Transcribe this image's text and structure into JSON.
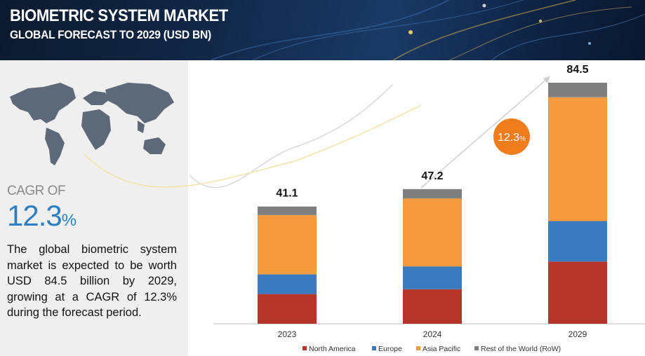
{
  "header": {
    "title": "BIOMETRIC SYSTEM MARKET",
    "subtitle": "GLOBAL FORECAST TO 2029 (USD BN)"
  },
  "cagr": {
    "label": "CAGR OF",
    "value": "12.3",
    "unit": "%",
    "bubble_value": "12.3",
    "bubble_unit": "%"
  },
  "description": "The global biometric system market is expected to be worth USD 84.5 billion by 2029, growing at a CAGR of 12.3% during the forecast period.",
  "colors": {
    "north_america": "#b5352b",
    "europe": "#3a7bbf",
    "asia_pacific": "#f59a3f",
    "rest_of_world": "#7f7f7f",
    "bubble": "#f07d1b",
    "cagr_text": "#2d7fc1"
  },
  "chart_data": {
    "type": "bar",
    "stacked": true,
    "categories": [
      "2023",
      "2024",
      "2029"
    ],
    "totals": [
      "41.1",
      "47.2",
      "84.5"
    ],
    "series": [
      {
        "name": "North America",
        "color": "#b5352b",
        "values": [
          10.4,
          12.1,
          21.8
        ]
      },
      {
        "name": "Europe",
        "color": "#3a7bbf",
        "values": [
          6.9,
          8.0,
          14.2
        ]
      },
      {
        "name": "Asia Pacific",
        "color": "#f59a3f",
        "values": [
          20.8,
          23.8,
          43.4
        ]
      },
      {
        "name": "Rest of the World (RoW)",
        "color": "#7f7f7f",
        "values": [
          3.0,
          3.3,
          5.1
        ]
      }
    ],
    "ylim": [
      0,
      84.5
    ],
    "grid": false,
    "legend": "bottom-center"
  }
}
